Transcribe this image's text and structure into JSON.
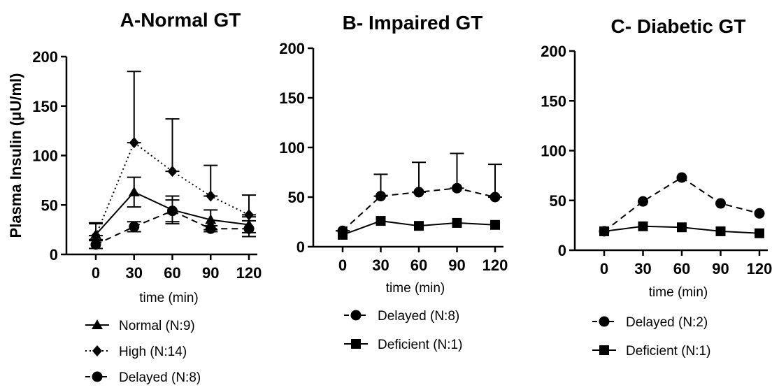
{
  "chart_data": [
    {
      "type": "line",
      "title": "A-Normal GT",
      "xlabel": "time (min)",
      "ylabel": "Plasma Insulin (μU/ml)",
      "x": [
        0,
        30,
        60,
        90,
        120
      ],
      "xticks": [
        "0",
        "30",
        "60",
        "90",
        "120"
      ],
      "ylim": [
        0,
        200
      ],
      "yticks": [
        "0",
        "50",
        "100",
        "150",
        "200"
      ],
      "series": [
        {
          "name": "Normal (N:9)",
          "marker": "triangle",
          "dash": "solid",
          "values": [
            20,
            63,
            45,
            35,
            30
          ],
          "err_up": [
            32,
            78,
            59,
            45,
            38
          ],
          "err_down": [
            15,
            48,
            31,
            25,
            22
          ]
        },
        {
          "name": "High (N:14)",
          "marker": "diamond",
          "dash": "dotted",
          "values": [
            19,
            113,
            84,
            59,
            40
          ],
          "err_up": [
            31,
            185,
            137,
            90,
            60
          ],
          "err_down": [
            19,
            113,
            84,
            59,
            40
          ]
        },
        {
          "name": "Delayed (N:8)",
          "marker": "circle",
          "dash": "dashed",
          "values": [
            10,
            28,
            44,
            26,
            26
          ],
          "err_up": [
            14,
            33,
            55,
            29,
            34
          ],
          "err_down": [
            6,
            23,
            33,
            23,
            18
          ]
        }
      ]
    },
    {
      "type": "line",
      "title": "B- Impaired GT",
      "xlabel": "time (min)",
      "ylabel": "",
      "x": [
        0,
        30,
        60,
        90,
        120
      ],
      "xticks": [
        "0",
        "30",
        "60",
        "90",
        "120"
      ],
      "ylim": [
        0,
        200
      ],
      "yticks": [
        "0",
        "50",
        "100",
        "150",
        "200"
      ],
      "series": [
        {
          "name": "Delayed (N:8)",
          "marker": "circle",
          "dash": "dashed",
          "values": [
            16,
            51,
            55,
            59,
            50
          ],
          "err_up": [
            16,
            73,
            85,
            94,
            83
          ],
          "err_down": [
            16,
            51,
            55,
            59,
            50
          ]
        },
        {
          "name": "Deficient (N:1)",
          "marker": "square",
          "dash": "solid",
          "values": [
            12,
            26,
            21,
            24,
            22
          ]
        }
      ]
    },
    {
      "type": "line",
      "title": "C- Diabetic GT",
      "xlabel": "time (min)",
      "ylabel": "",
      "x": [
        0,
        30,
        60,
        90,
        120
      ],
      "xticks": [
        "0",
        "30",
        "60",
        "90",
        "120"
      ],
      "ylim": [
        0,
        200
      ],
      "yticks": [
        "0",
        "50",
        "100",
        "150",
        "200"
      ],
      "series": [
        {
          "name": "Delayed (N:2)",
          "marker": "circle",
          "dash": "dashed",
          "values": [
            19,
            49,
            73,
            47,
            37
          ]
        },
        {
          "name": "Deficient (N:1)",
          "marker": "square",
          "dash": "solid",
          "values": [
            19,
            24,
            23,
            19,
            17
          ]
        }
      ]
    }
  ]
}
